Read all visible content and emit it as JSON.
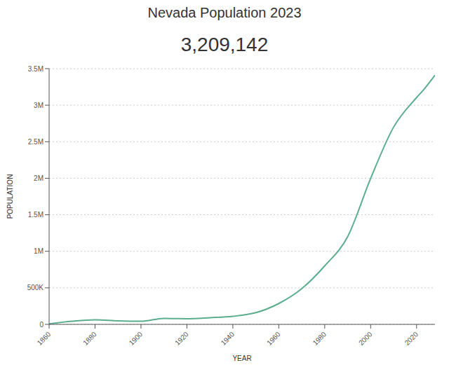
{
  "chart_data": {
    "type": "line",
    "title": "Nevada Population 2023",
    "subtitle": "3,209,142",
    "x_label": "YEAR",
    "y_label": "POPULATION",
    "x": [
      1860,
      1870,
      1880,
      1890,
      1900,
      1910,
      1920,
      1930,
      1940,
      1950,
      1960,
      1970,
      1980,
      1990,
      2000,
      2010,
      2020,
      2023,
      2028
    ],
    "values": [
      6857,
      42491,
      62266,
      47355,
      42335,
      81875,
      77407,
      91058,
      110247,
      160083,
      285278,
      488738,
      800493,
      1201833,
      1998257,
      2700551,
      3104614,
      3209142,
      3410000
    ],
    "color": "#5aae8e",
    "xlim": [
      1860,
      2028
    ],
    "xticks": [
      1860,
      1880,
      1900,
      1920,
      1940,
      1960,
      1980,
      2000,
      2020
    ],
    "ylim": [
      0,
      3500000
    ],
    "yticks": [
      0,
      {
        "value": 500000,
        "label": "500K"
      },
      {
        "value": 1000000,
        "label": "1M"
      },
      {
        "value": 1500000,
        "label": "1.5M"
      },
      {
        "value": 2000000,
        "label": "2M"
      },
      {
        "value": 2500000,
        "label": "2.5M"
      },
      {
        "value": 3000000,
        "label": "3M"
      },
      {
        "value": 3500000,
        "label": "3.5M"
      }
    ],
    "grid": true
  }
}
